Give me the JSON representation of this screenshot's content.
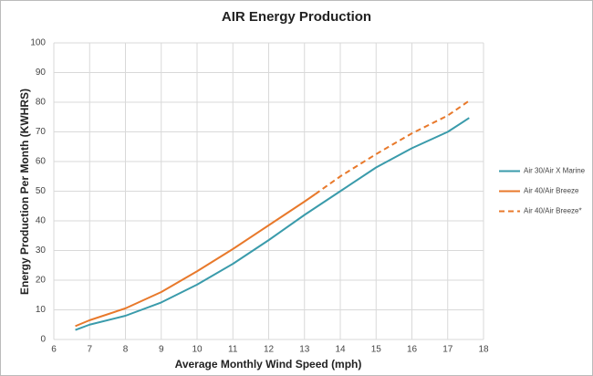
{
  "chart_data": {
    "type": "line",
    "title": "AIR Energy Production",
    "x_label": "Average Monthly Wind Speed (mph)",
    "y_label": "Energy Production Per Month (KWHRS)",
    "xlim": [
      6,
      18
    ],
    "xticks": [
      6,
      7,
      8,
      9,
      10,
      11,
      12,
      13,
      14,
      15,
      16,
      17,
      18
    ],
    "ylim": [
      0,
      100
    ],
    "yticks": [
      0,
      10,
      20,
      30,
      40,
      50,
      60,
      70,
      80,
      90,
      100
    ],
    "grid": true,
    "legend": "right",
    "series": [
      {
        "name": "Air 30/Air X Marine",
        "color": "#3a9bab",
        "dashed": false,
        "x": [
          6.6,
          7,
          8,
          9,
          10,
          11,
          12,
          13,
          14,
          15,
          16,
          17,
          17.6
        ],
        "values": [
          3.2,
          5,
          8,
          12.5,
          18.5,
          25.5,
          33.5,
          42,
          50,
          58,
          64.5,
          70,
          74.7
        ]
      },
      {
        "name": "Air 40/Air Breeze",
        "color": "#e8792b",
        "dashed": false,
        "x": [
          6.6,
          7,
          8,
          9,
          10,
          11,
          12,
          13,
          13.3
        ],
        "values": [
          4.5,
          6.5,
          10.5,
          16,
          23,
          30.5,
          38.5,
          46.5,
          49
        ]
      },
      {
        "name": "Air 40/Air Breeze*",
        "color": "#e8792b",
        "dashed": true,
        "x": [
          13.3,
          14,
          15,
          16,
          17,
          17.6
        ],
        "values": [
          49,
          55,
          62.5,
          69.5,
          75.5,
          80.5
        ]
      }
    ]
  }
}
